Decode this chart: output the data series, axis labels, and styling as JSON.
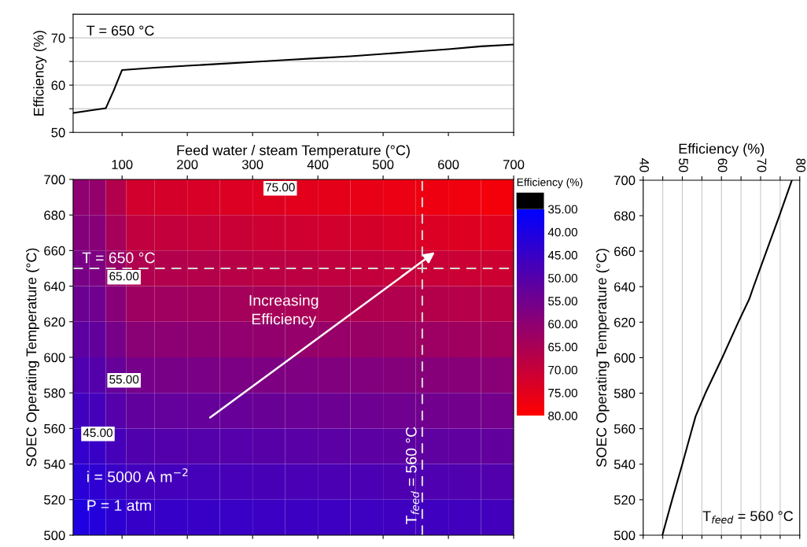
{
  "chart_data": [
    {
      "type": "line",
      "ylabel": "Efficiency (%)",
      "xlim": [
        25,
        700
      ],
      "xticks": [
        100,
        200,
        300,
        400,
        500,
        600,
        700
      ],
      "ylim": [
        50,
        75
      ],
      "yticks": [
        50,
        {
          "value": 55,
          "label": null
        },
        60,
        {
          "value": 65,
          "label": null
        },
        70
      ],
      "tick_labels": "y",
      "grid": "y",
      "annotations": [
        "T = 650 °C"
      ],
      "x": [
        25,
        50,
        75,
        87,
        100,
        150,
        200,
        250,
        300,
        350,
        400,
        450,
        500,
        550,
        600,
        650,
        700
      ],
      "series": [
        {
          "color": "#000000",
          "values": [
            54.1,
            54.6,
            55.1,
            58.8,
            63.2,
            63.7,
            64.1,
            64.5,
            64.9,
            65.3,
            65.7,
            66.1,
            66.6,
            67.1,
            67.6,
            68.2,
            68.6
          ]
        }
      ]
    },
    {
      "type": "heatmap",
      "xlabel": "Feed water / steam Temperature (°C)",
      "ylabel": "SOEC Operating Temperature (°C)",
      "clabel": "Efficiency (%)",
      "xlim": [
        25,
        700
      ],
      "xticks": [
        100,
        200,
        300,
        400,
        500,
        600,
        700
      ],
      "ylim": [
        500,
        700
      ],
      "yticks": [
        500,
        520,
        540,
        560,
        580,
        600,
        620,
        640,
        660,
        680,
        700
      ],
      "clim": [
        35,
        80
      ],
      "cticks": [
        {
          "value": 35,
          "label": "35.00"
        },
        {
          "value": 40,
          "label": "40.00"
        },
        {
          "value": 45,
          "label": "45.00"
        },
        {
          "value": 50,
          "label": "50.00"
        },
        {
          "value": 55,
          "label": "55.00"
        },
        {
          "value": 60,
          "label": "60.00"
        },
        {
          "value": 65,
          "label": "65.00"
        },
        {
          "value": 70,
          "label": "70.00"
        },
        {
          "value": 75,
          "label": "75.00"
        },
        {
          "value": 80,
          "label": "80.00"
        }
      ],
      "x": [
        37.5,
        62.5,
        87.5,
        125,
        175,
        225,
        275,
        325,
        375,
        425,
        475,
        525,
        575,
        625,
        675
      ],
      "y": [
        690,
        670,
        650,
        630,
        610,
        590,
        570,
        550,
        530,
        510
      ],
      "cells": [
        [
          60.3,
          61.0,
          66.6,
          72.0,
          72.6,
          73.1,
          73.7,
          74.2,
          74.8,
          75.3,
          75.8,
          76.4,
          76.9,
          77.5,
          78.0
        ],
        [
          58.3,
          59.0,
          64.1,
          68.9,
          69.4,
          69.9,
          70.4,
          70.9,
          71.5,
          72.0,
          72.5,
          73.0,
          73.5,
          74.1,
          74.6
        ],
        [
          56.3,
          57.0,
          61.6,
          66.0,
          66.5,
          66.9,
          67.4,
          67.9,
          68.3,
          68.8,
          69.3,
          69.8,
          70.2,
          70.7,
          71.2
        ],
        [
          54.1,
          54.8,
          58.9,
          62.8,
          63.2,
          63.6,
          64.1,
          64.5,
          64.9,
          65.4,
          65.8,
          66.2,
          66.7,
          67.1,
          67.5
        ],
        [
          51.6,
          52.3,
          56.0,
          59.3,
          59.7,
          60.1,
          60.5,
          60.8,
          61.2,
          61.6,
          62.0,
          62.3,
          62.7,
          63.1,
          63.5
        ],
        [
          49.0,
          49.8,
          53.0,
          55.9,
          56.2,
          56.5,
          56.8,
          57.1,
          57.4,
          57.7,
          58.0,
          58.3,
          58.6,
          58.9,
          59.2
        ],
        [
          46.5,
          47.3,
          50.0,
          52.4,
          52.7,
          52.9,
          53.2,
          53.5,
          53.8,
          54.0,
          54.3,
          54.6,
          54.9,
          55.1,
          55.4
        ],
        [
          44.3,
          45.0,
          47.4,
          49.3,
          49.6,
          49.9,
          50.1,
          50.4,
          50.7,
          50.9,
          51.2,
          51.5,
          51.7,
          52.0,
          52.3
        ],
        [
          42.3,
          43.1,
          45.2,
          46.9,
          47.1,
          47.3,
          47.6,
          47.8,
          48.1,
          48.3,
          48.5,
          48.8,
          49.0,
          49.2,
          49.5
        ],
        [
          40.4,
          41.2,
          43.0,
          44.5,
          44.7,
          44.9,
          45.1,
          45.4,
          45.6,
          45.8,
          46.0,
          46.2,
          46.4,
          46.6,
          46.8
        ]
      ],
      "ref_lines": [
        {
          "axis": "y",
          "value": 650,
          "label": "T = 650 °C",
          "color": "#d9d9d9",
          "line_style": "dashed"
        },
        {
          "axis": "x",
          "value": 560,
          "label": "T$_{feed}$ = 560 °C",
          "color": "#d9d9d9",
          "line_style": "dashed"
        }
      ],
      "annotations": [
        "Increasing\nEfficiency",
        "i = 5000 A m$^{−2}$",
        "P = 1 atm",
        "75.00",
        "65.00",
        "55.00",
        "45.00"
      ]
    },
    {
      "type": "line",
      "xlabel": "Efficiency (%)",
      "ylabel": "SOEC Operating Temperature (°C)",
      "xlim": [
        40,
        80
      ],
      "xticks": [
        40,
        {
          "value": 45,
          "label": null
        },
        50,
        {
          "value": 55,
          "label": null
        },
        60,
        {
          "value": 65,
          "label": null
        },
        70,
        {
          "value": 75,
          "label": null
        },
        80
      ],
      "ylim": [
        500,
        700
      ],
      "yticks": [
        500,
        520,
        540,
        560,
        580,
        600,
        620,
        640,
        660,
        680,
        700
      ],
      "grid": "x",
      "annotations": [
        "T$_{feed}$ = 560 °C"
      ],
      "series": [
        {
          "color": "#000000",
          "x": [
            44.9,
            47.4,
            50.0,
            52.5,
            53.4,
            55.9,
            60.2,
            64.3,
            67.1,
            68.2,
            71.5,
            74.8,
            78.0
          ],
          "values": [
            500,
            520,
            540,
            560,
            567,
            580,
            600,
            620,
            633,
            640,
            660,
            680,
            700
          ]
        }
      ]
    }
  ]
}
